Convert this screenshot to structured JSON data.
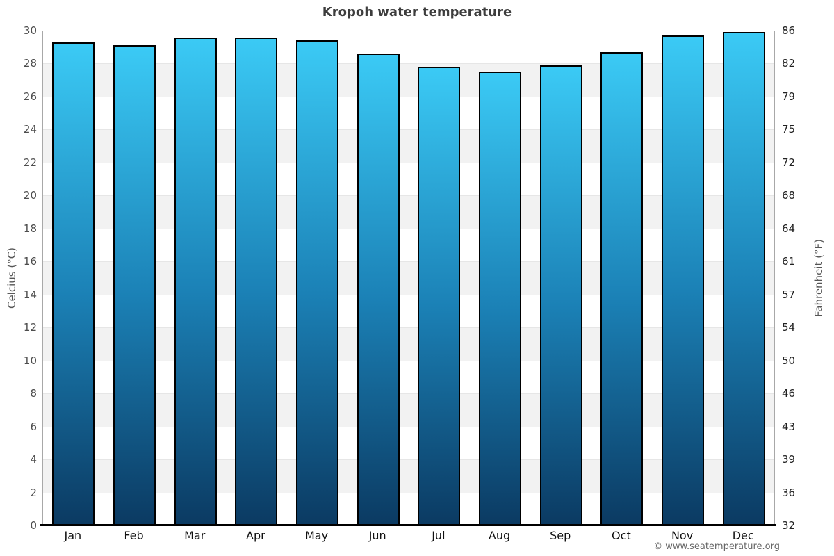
{
  "page": {
    "footer_credit": "© www.seatemperature.org"
  },
  "chart_data": {
    "type": "bar",
    "title": "Kropoh water temperature",
    "xlabel": "",
    "ylabel_left": "Celcius (°C)",
    "ylabel_right": "Fahrenheit (°F)",
    "categories": [
      "Jan",
      "Feb",
      "Mar",
      "Apr",
      "May",
      "Jun",
      "Jul",
      "Aug",
      "Sep",
      "Oct",
      "Nov",
      "Dec"
    ],
    "values": [
      29.3,
      29.1,
      29.6,
      29.6,
      29.4,
      28.6,
      27.8,
      27.5,
      27.9,
      28.7,
      29.7,
      29.9
    ],
    "unit": "°C",
    "ylim": [
      0,
      30
    ],
    "celsius_ticks": [
      30,
      28,
      26,
      24,
      22,
      20,
      18,
      16,
      14,
      12,
      10,
      8,
      6,
      4,
      2,
      0
    ],
    "fahrenheit_ticks": [
      86,
      82,
      79,
      75,
      72,
      68,
      64,
      61,
      57,
      54,
      50,
      46,
      43,
      39,
      36,
      32
    ],
    "grid": "alternating horizontal bands every 2°C, shaded bands start at 28-26",
    "legend": "none",
    "colors": {
      "bar_gradient_top": "#3bcaf5",
      "bar_gradient_mid": "#1b81b6",
      "bar_gradient_bottom": "#0b3a62",
      "bar_border": "#000000",
      "band_shaded": "#f2f2f2",
      "band_plain": "#ffffff",
      "axis_line": "#000000",
      "title_text": "#3d3d3d"
    }
  }
}
